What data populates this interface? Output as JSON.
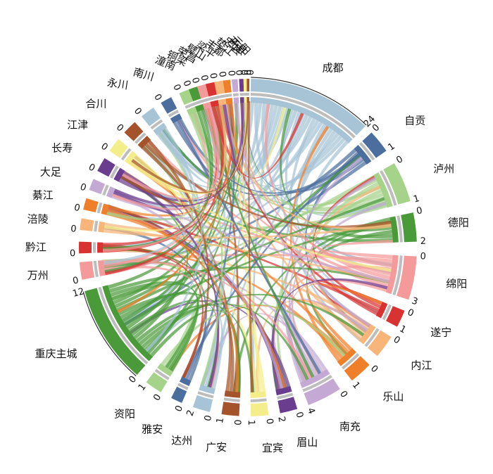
{
  "chart_data": {
    "type": "chord",
    "nodes": [
      {
        "name": "成都",
        "color": "#a6c4d6",
        "ticks": [
          "0",
          "24"
        ]
      },
      {
        "name": "自贡",
        "color": "#4b6e9e",
        "ticks": [
          "0",
          "1"
        ]
      },
      {
        "name": "泸州",
        "color": "#a5d38a",
        "ticks": [
          "0",
          "1"
        ]
      },
      {
        "name": "德阳",
        "color": "#4a9a3a",
        "ticks": [
          "0",
          "2"
        ]
      },
      {
        "name": "绵阳",
        "color": "#f59a9a",
        "ticks": [
          "0",
          "3"
        ]
      },
      {
        "name": "遂宁",
        "color": "#d93232",
        "ticks": [
          "0",
          "1"
        ]
      },
      {
        "name": "内江",
        "color": "#f7b57a",
        "ticks": [
          "0"
        ]
      },
      {
        "name": "乐山",
        "color": "#f07f2a",
        "ticks": [
          "0",
          "1"
        ]
      },
      {
        "name": "南充",
        "color": "#c3a9d3",
        "ticks": [
          "0",
          "4"
        ]
      },
      {
        "name": "眉山",
        "color": "#6b3d8f",
        "ticks": [
          "0",
          "2"
        ]
      },
      {
        "name": "宜宾",
        "color": "#f4ee8a",
        "ticks": [
          "0",
          "1"
        ]
      },
      {
        "name": "广安",
        "color": "#a4532a",
        "ticks": [
          "0",
          "1"
        ]
      },
      {
        "name": "达州",
        "color": "#a6c4d6",
        "ticks": [
          "0",
          "2"
        ]
      },
      {
        "name": "雅安",
        "color": "#4b6e9e",
        "ticks": [
          "0"
        ]
      },
      {
        "name": "资阳",
        "color": "#a5d38a",
        "ticks": [
          "0",
          "1"
        ]
      },
      {
        "name": "重庆主城",
        "color": "#4a9a3a",
        "ticks": [
          "0",
          "12"
        ]
      },
      {
        "name": "万州",
        "color": "#f59a9a",
        "ticks": [
          "0"
        ]
      },
      {
        "name": "黔江",
        "color": "#d93232",
        "ticks": [
          "0"
        ]
      },
      {
        "name": "涪陵",
        "color": "#f7b57a",
        "ticks": [
          "0"
        ]
      },
      {
        "name": "綦江",
        "color": "#f07f2a",
        "ticks": [
          "0"
        ]
      },
      {
        "name": "大足",
        "color": "#c3a9d3",
        "ticks": [
          "0"
        ]
      },
      {
        "name": "长寿",
        "color": "#6b3d8f",
        "ticks": [
          "0"
        ]
      },
      {
        "name": "江津",
        "color": "#f4ee8a",
        "ticks": [
          "0"
        ]
      },
      {
        "name": "合川",
        "color": "#a4532a",
        "ticks": [
          "0"
        ]
      },
      {
        "name": "永川",
        "color": "#a6c4d6",
        "ticks": [
          "0"
        ]
      },
      {
        "name": "南川",
        "color": "#4b6e9e",
        "ticks": [
          "0"
        ]
      },
      {
        "name": "潼南",
        "color": "#a5d38a",
        "ticks": [
          "0"
        ]
      },
      {
        "name": "铜梁",
        "color": "#4a9a3a",
        "ticks": [
          "0"
        ]
      },
      {
        "name": "荣昌",
        "color": "#f59a9a",
        "ticks": [
          "0"
        ]
      },
      {
        "name": "璧山",
        "color": "#d93232",
        "ticks": [
          "0"
        ]
      },
      {
        "name": "梁平",
        "color": "#f7b57a",
        "ticks": [
          "0"
        ]
      },
      {
        "name": "丰都",
        "color": "#f07f2a",
        "ticks": [
          "0"
        ]
      },
      {
        "name": "垫江",
        "color": "#c3a9d3",
        "ticks": [
          "0"
        ]
      },
      {
        "name": "忠县",
        "color": "#6b3d8f",
        "ticks": [
          "0"
        ]
      },
      {
        "name": "开县",
        "color": "#f4ee8a",
        "ticks": [
          "0"
        ]
      },
      {
        "name": "云阳",
        "color": "#a4532a",
        "ticks": [
          "0"
        ]
      }
    ]
  }
}
